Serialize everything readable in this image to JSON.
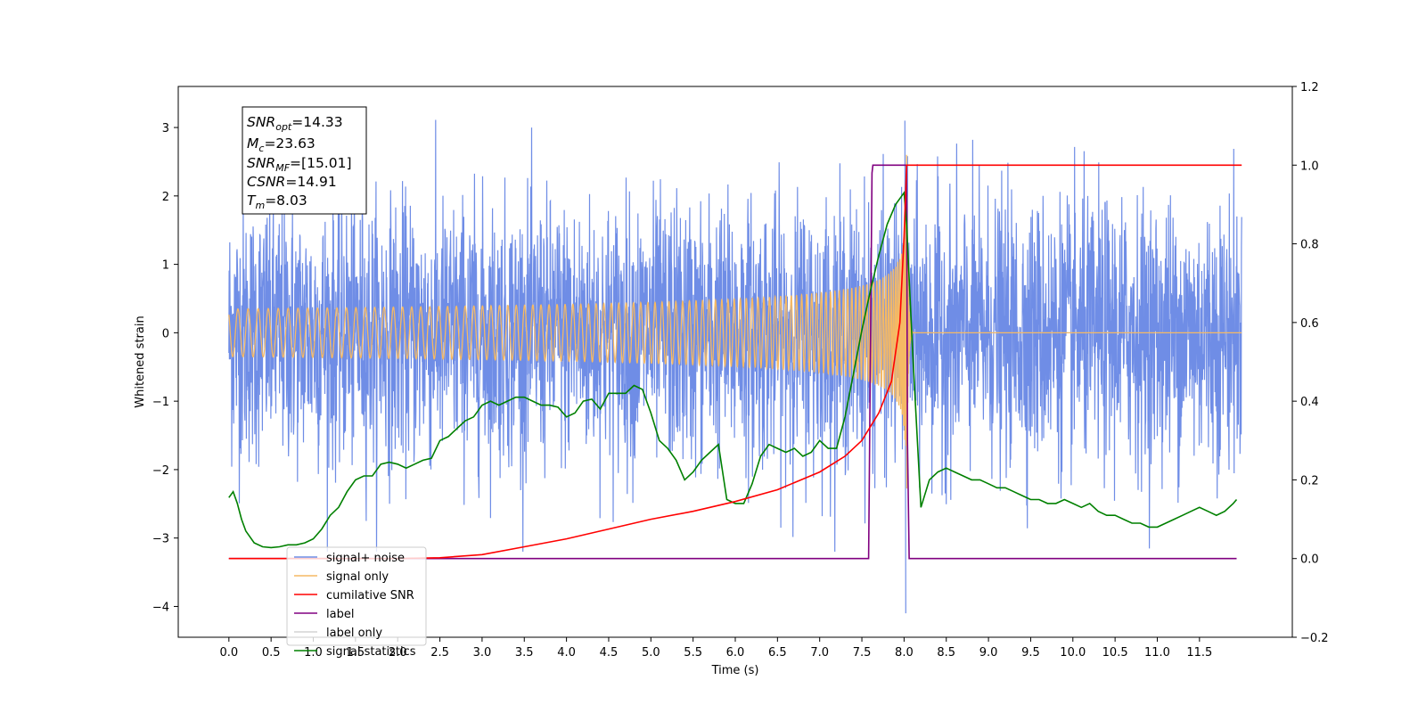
{
  "chart_data": {
    "type": "line",
    "xlabel": "Time (s)",
    "ylabel": "Whitened strain",
    "xlim": [
      -0.6,
      12.6
    ],
    "ylim": [
      -4.45,
      3.6
    ],
    "y2lim": [
      -0.2,
      1.2
    ],
    "x_ticks": [
      "0.0",
      "0.5",
      "1.0",
      "1.5",
      "2.0",
      "2.5",
      "3.0",
      "3.5",
      "4.0",
      "4.5",
      "5.0",
      "5.5",
      "6.0",
      "6.5",
      "7.0",
      "7.5",
      "8.0",
      "8.5",
      "9.0",
      "9.5",
      "10.0",
      "10.5",
      "11.0",
      "11.5"
    ],
    "y_ticks": [
      "3",
      "2",
      "1",
      "0",
      "−1",
      "−2",
      "−3",
      "−4"
    ],
    "y2_ticks": [
      "1.2",
      "1.0",
      "0.8",
      "0.6",
      "0.4",
      "0.2",
      "0.0",
      "−0.2"
    ],
    "info_box": {
      "snr_opt": {
        "name": "SNR",
        "sub": "opt",
        "value": "=14.33"
      },
      "mc": {
        "name": "M",
        "sub": "c",
        "value": "=23.63"
      },
      "snr_mf": {
        "name": "SNR",
        "sub": "MF",
        "value": "=[15.01]"
      },
      "csnr": {
        "name": "CSNR",
        "value": "=14.91"
      },
      "tm": {
        "name": "T",
        "sub": "m",
        "value": "=8.03"
      }
    },
    "series": [
      {
        "name": "signal+ noise",
        "axis": "left",
        "color": "#6f8de6",
        "description_values": "whitened noise, approx. Gaussian, spans roughly -2.7 to 3.2 with outliers to -4.1 near t=8.0",
        "x_range": [
          0.0,
          12.0
        ]
      },
      {
        "name": "signal only",
        "axis": "left",
        "color": "#f5b964",
        "chirp": {
          "start": 0.0,
          "merger": 8.03,
          "peak_amplitude": 2.6,
          "ringdown_end": 8.1
        }
      },
      {
        "name": "cumilative SNR",
        "axis": "right",
        "color": "#ff0000",
        "x": [
          0.0,
          2.0,
          2.5,
          3.0,
          3.5,
          4.0,
          4.5,
          5.0,
          5.5,
          6.0,
          6.5,
          7.0,
          7.3,
          7.5,
          7.7,
          7.85,
          7.95,
          8.0,
          8.03,
          12.0
        ],
        "values": [
          0.0,
          0.0,
          0.002,
          0.01,
          0.03,
          0.05,
          0.075,
          0.1,
          0.12,
          0.145,
          0.175,
          0.22,
          0.26,
          0.3,
          0.37,
          0.45,
          0.6,
          0.82,
          1.0,
          1.0
        ]
      },
      {
        "name": "label",
        "axis": "right",
        "color": "#800080",
        "x": [
          0.0,
          7.57,
          7.58,
          7.62,
          7.63,
          8.03,
          8.04,
          8.06,
          8.07,
          11.94
        ],
        "values": [
          0.0,
          0.0,
          0.0,
          0.98,
          1.0,
          1.0,
          0.3,
          0.0,
          0.0,
          0.0
        ]
      },
      {
        "name": "label only",
        "axis": "right",
        "color": "#d3d3d3",
        "x": [],
        "values": []
      },
      {
        "name": "signal statistics",
        "axis": "right",
        "color": "#008000",
        "x": [
          0.0,
          0.05,
          0.1,
          0.15,
          0.2,
          0.3,
          0.4,
          0.5,
          0.6,
          0.7,
          0.8,
          0.9,
          1.0,
          1.1,
          1.2,
          1.3,
          1.4,
          1.5,
          1.6,
          1.7,
          1.8,
          1.9,
          2.0,
          2.1,
          2.2,
          2.3,
          2.4,
          2.5,
          2.6,
          2.7,
          2.8,
          2.9,
          3.0,
          3.1,
          3.2,
          3.3,
          3.4,
          3.5,
          3.6,
          3.7,
          3.8,
          3.9,
          4.0,
          4.1,
          4.2,
          4.3,
          4.4,
          4.5,
          4.6,
          4.7,
          4.8,
          4.9,
          5.0,
          5.1,
          5.2,
          5.3,
          5.4,
          5.5,
          5.6,
          5.7,
          5.8,
          5.9,
          6.0,
          6.1,
          6.2,
          6.3,
          6.4,
          6.5,
          6.6,
          6.7,
          6.8,
          6.9,
          7.0,
          7.1,
          7.2,
          7.3,
          7.4,
          7.5,
          7.6,
          7.7,
          7.8,
          7.9,
          8.0,
          8.03,
          8.1,
          8.2,
          8.3,
          8.4,
          8.5,
          8.6,
          8.7,
          8.8,
          8.9,
          9.0,
          9.1,
          9.2,
          9.3,
          9.4,
          9.5,
          9.6,
          9.7,
          9.8,
          9.9,
          10.0,
          10.1,
          10.2,
          10.3,
          10.4,
          10.5,
          10.6,
          10.7,
          10.8,
          10.9,
          11.0,
          11.1,
          11.2,
          11.3,
          11.4,
          11.5,
          11.6,
          11.7,
          11.8,
          11.9,
          11.94
        ],
        "values": [
          0.155,
          0.17,
          0.14,
          0.1,
          0.07,
          0.04,
          0.03,
          0.028,
          0.03,
          0.035,
          0.035,
          0.04,
          0.05,
          0.075,
          0.11,
          0.13,
          0.17,
          0.2,
          0.21,
          0.21,
          0.24,
          0.245,
          0.24,
          0.23,
          0.24,
          0.25,
          0.255,
          0.3,
          0.31,
          0.33,
          0.35,
          0.36,
          0.39,
          0.4,
          0.39,
          0.4,
          0.41,
          0.41,
          0.4,
          0.39,
          0.39,
          0.385,
          0.36,
          0.37,
          0.4,
          0.405,
          0.38,
          0.42,
          0.42,
          0.42,
          0.44,
          0.43,
          0.37,
          0.3,
          0.28,
          0.25,
          0.2,
          0.22,
          0.25,
          0.27,
          0.29,
          0.15,
          0.14,
          0.14,
          0.19,
          0.26,
          0.29,
          0.28,
          0.27,
          0.28,
          0.26,
          0.27,
          0.3,
          0.28,
          0.28,
          0.36,
          0.47,
          0.58,
          0.68,
          0.77,
          0.85,
          0.9,
          0.93,
          0.85,
          0.53,
          0.13,
          0.2,
          0.22,
          0.23,
          0.22,
          0.21,
          0.2,
          0.2,
          0.19,
          0.18,
          0.18,
          0.17,
          0.16,
          0.15,
          0.15,
          0.14,
          0.14,
          0.15,
          0.14,
          0.13,
          0.14,
          0.12,
          0.11,
          0.11,
          0.1,
          0.09,
          0.09,
          0.08,
          0.08,
          0.09,
          0.1,
          0.11,
          0.12,
          0.13,
          0.12,
          0.11,
          0.12,
          0.14,
          0.15
        ]
      }
    ],
    "legend_placement": "lower-left",
    "legend": [
      "signal+ noise",
      "signal only",
      "cumilative SNR",
      "label",
      "label only",
      "signal statistics"
    ]
  }
}
